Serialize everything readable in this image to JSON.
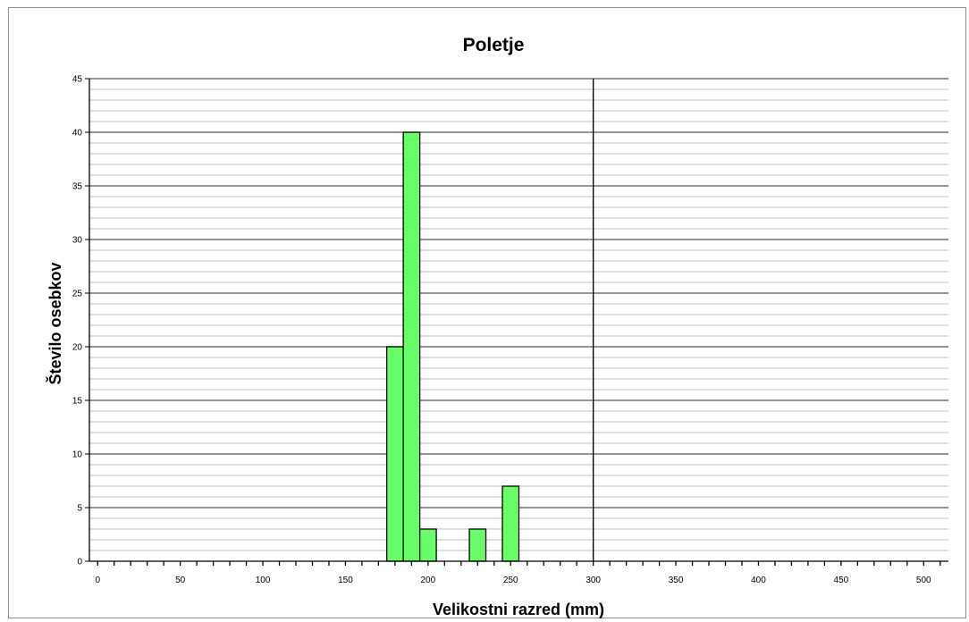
{
  "chart_data": {
    "type": "bar",
    "title": "Poletje",
    "xlabel": "Velikostni razred (mm)",
    "ylabel": "Število osebkov",
    "xlim": [
      -5,
      515
    ],
    "ylim": [
      0,
      45
    ],
    "x_major_ticks": [
      0,
      50,
      100,
      150,
      200,
      250,
      300,
      350,
      400,
      450,
      500
    ],
    "x_minor_step": 10,
    "y_ticks": [
      0,
      5,
      10,
      15,
      20,
      25,
      30,
      35,
      40,
      45
    ],
    "y_minor_step": 1,
    "grid": true,
    "reference_line_x": 300,
    "bar_width": 10,
    "bars": [
      {
        "x": 180,
        "value": 20
      },
      {
        "x": 190,
        "value": 40
      },
      {
        "x": 200,
        "value": 3
      },
      {
        "x": 230,
        "value": 3
      },
      {
        "x": 250,
        "value": 7
      }
    ],
    "colors": {
      "bar_fill": "#66ff66",
      "bar_stroke": "#000000",
      "grid": "#808080",
      "axis": "#000000"
    }
  }
}
